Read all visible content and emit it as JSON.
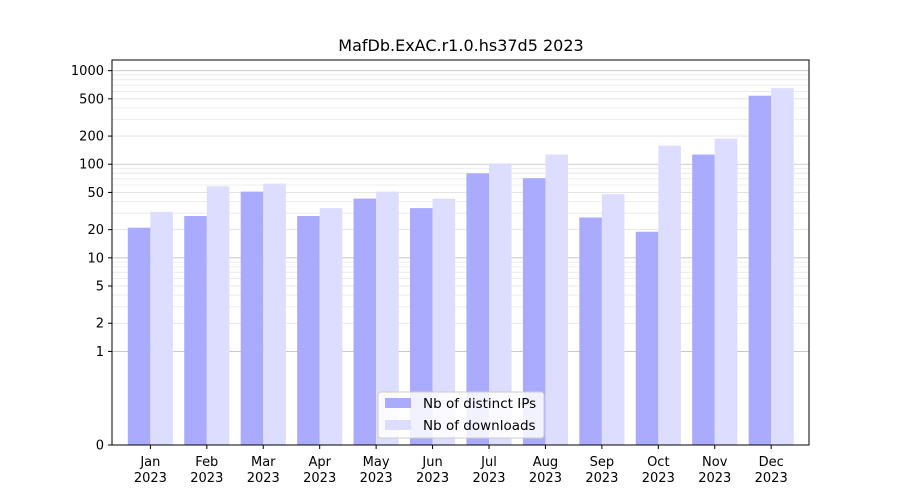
{
  "chart_data": {
    "type": "bar",
    "title": "MafDb.ExAC.r1.0.hs37d5 2023",
    "xlabel": "",
    "ylabel": "",
    "yscale": "symlog",
    "ylim": [
      0,
      1300
    ],
    "yticks": [
      0,
      1,
      2,
      5,
      10,
      20,
      50,
      100,
      200,
      500,
      1000
    ],
    "categories": [
      "Jan\n2023",
      "Feb\n2023",
      "Mar\n2023",
      "Apr\n2023",
      "May\n2023",
      "Jun\n2023",
      "Jul\n2023",
      "Aug\n2023",
      "Sep\n2023",
      "Oct\n2023",
      "Nov\n2023",
      "Dec\n2023"
    ],
    "series": [
      {
        "name": "Nb of distinct IPs",
        "color": "#aaaaff",
        "values": [
          21,
          28,
          51,
          28,
          43,
          34,
          80,
          71,
          27,
          19,
          127,
          540
        ]
      },
      {
        "name": "Nb of downloads",
        "color": "#ddddff",
        "values": [
          31,
          58,
          62,
          34,
          51,
          43,
          102,
          127,
          48,
          158,
          188,
          650
        ]
      }
    ],
    "legend_position": "lower center",
    "grid": true
  }
}
